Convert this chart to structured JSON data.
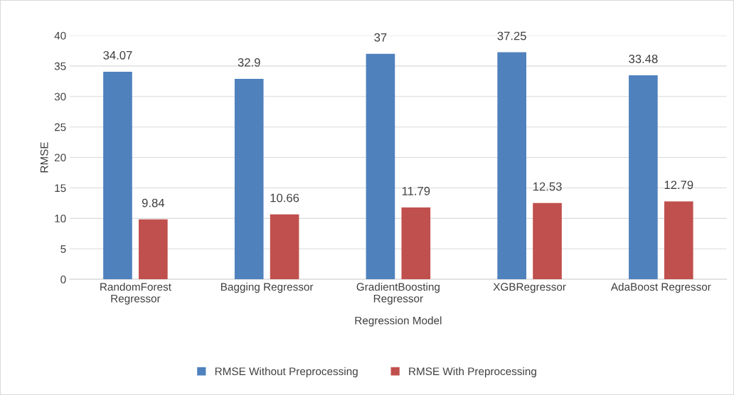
{
  "chart_data": {
    "type": "bar",
    "xlabel": "Regression Model",
    "ylabel": "RMSE",
    "categories": [
      "RandomForest Regressor",
      "Bagging Regressor",
      "GradientBoosting Regressor",
      "XGBRegressor",
      "AdaBoost Regressor"
    ],
    "series": [
      {
        "name": "RMSE Without Preprocessing",
        "color": "#4f81bd",
        "values": [
          34.07,
          32.9,
          37,
          37.25,
          33.48
        ]
      },
      {
        "name": "RMSE With Preprocessing",
        "color": "#c0504d",
        "values": [
          9.84,
          10.66,
          11.79,
          12.53,
          12.79
        ]
      }
    ],
    "ylim": [
      0,
      40
    ],
    "yticks": [
      0,
      5,
      10,
      15,
      20,
      25,
      30,
      35,
      40
    ],
    "grid": "y",
    "legend": "bottom",
    "data_labels": true
  }
}
